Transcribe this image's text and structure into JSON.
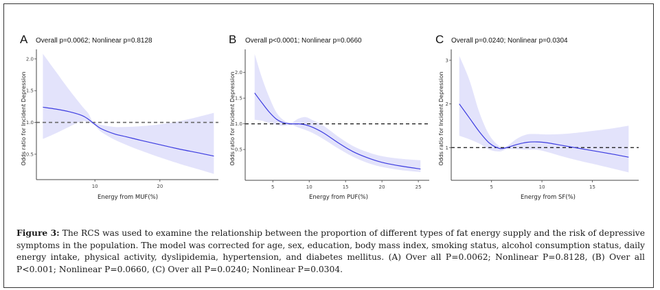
{
  "figure": {
    "caption_label": "Figure 3:",
    "caption_text": " The RCS was used to examine the relationship between the proportion of different types of fat energy supply and the risk of depressive symptoms in the population. The model was corrected for age, sex, education, body mass index, smoking status, alcohol consumption status, daily energy intake, physical activity, dyslipidemia, hypertension, and diabetes mellitus. (A) Over all P=0.0062; Nonlinear P=0.8128, (B) Over all P<0.001; Nonlinear P=0.0660, (C) Over all P=0.0240; Nonlinear P=0.0304."
  },
  "colors": {
    "curve": "#3b3be0",
    "ribbon": "#e3e3fb",
    "reference_line_A": "#666666",
    "reference_line_BC": "#111111",
    "axis": "#444444"
  },
  "chart_data": [
    {
      "type": "line",
      "panel": "A",
      "title": "Overall p=0.0062; Nonlinear p=0.8128",
      "xlabel": "Energy from MUF(%)",
      "ylabel": "Odds ratio for Incident Depression",
      "xlim": [
        1.0,
        29.0
      ],
      "ylim": [
        0.1,
        2.15
      ],
      "xticks": [
        10,
        20
      ],
      "xtick_labels": [
        "10",
        "20"
      ],
      "yticks": [
        0.5,
        1.0,
        1.5,
        2.0
      ],
      "ytick_labels": [
        "0.5",
        "1.0",
        "1.5",
        "2.0"
      ],
      "reference_y": 1.0,
      "grid": false,
      "series": [
        {
          "name": "OR",
          "x": [
            2,
            4,
            6,
            8,
            9,
            9.6,
            10,
            11,
            13,
            15,
            17,
            20,
            23,
            26,
            28.3
          ],
          "y": [
            1.24,
            1.21,
            1.17,
            1.11,
            1.05,
            1.0,
            0.97,
            0.9,
            0.82,
            0.77,
            0.72,
            0.65,
            0.58,
            0.52,
            0.47
          ],
          "lower": [
            0.74,
            0.83,
            0.93,
            1.02,
            1.0,
            0.98,
            0.95,
            0.85,
            0.73,
            0.64,
            0.56,
            0.45,
            0.35,
            0.26,
            0.19
          ],
          "upper": [
            2.08,
            1.8,
            1.52,
            1.26,
            1.14,
            1.02,
            1.0,
            0.96,
            0.93,
            0.93,
            0.94,
            0.97,
            1.02,
            1.09,
            1.15
          ]
        }
      ]
    },
    {
      "type": "line",
      "panel": "B",
      "title": "Overall p<0.0001; Nonlinear p=0.0660",
      "xlabel": "Energy from PUF(%)",
      "ylabel": "Odds ratio for Incident Depression",
      "xlim": [
        1.2,
        26.5
      ],
      "ylim": [
        -0.1,
        2.45
      ],
      "xticks": [
        5,
        10,
        15,
        20,
        25
      ],
      "xtick_labels": [
        "5",
        "10",
        "15",
        "20",
        "25"
      ],
      "yticks": [
        0.5,
        1.0,
        1.5,
        2.0
      ],
      "ytick_labels": [
        "0.5",
        "1.0",
        "1.5",
        "2.0"
      ],
      "reference_y": 1.0,
      "grid": false,
      "series": [
        {
          "name": "OR",
          "x": [
            2.5,
            3.5,
            4.5,
            5.5,
            6.5,
            7.5,
            8.5,
            9.5,
            10.5,
            12,
            14,
            16,
            18,
            20,
            22.5,
            25.3
          ],
          "y": [
            1.6,
            1.41,
            1.23,
            1.09,
            1.02,
            1.0,
            1.0,
            0.98,
            0.93,
            0.82,
            0.63,
            0.46,
            0.34,
            0.25,
            0.18,
            0.12
          ],
          "lower": [
            1.08,
            1.06,
            1.02,
            0.98,
            0.96,
            0.98,
            0.93,
            0.88,
            0.82,
            0.7,
            0.52,
            0.36,
            0.24,
            0.16,
            0.1,
            0.06
          ],
          "upper": [
            2.36,
            1.9,
            1.52,
            1.22,
            1.07,
            1.02,
            1.1,
            1.13,
            1.07,
            0.96,
            0.75,
            0.57,
            0.45,
            0.37,
            0.32,
            0.29
          ]
        }
      ]
    },
    {
      "type": "line",
      "panel": "C",
      "title": "Overall p=0.0240; Nonlinear p=0.0304",
      "xlabel": "Energy from SF(%)",
      "ylabel": "Odds ratio for Incident Depression",
      "xlim": [
        1.0,
        19.6
      ],
      "ylim": [
        0.25,
        3.25
      ],
      "xticks": [
        5,
        10,
        15
      ],
      "xtick_labels": [
        "5",
        "10",
        "15"
      ],
      "yticks": [
        1,
        2,
        3
      ],
      "ytick_labels": [
        "1",
        "2",
        "3"
      ],
      "reference_y": 1.0,
      "grid": false,
      "series": [
        {
          "name": "OR",
          "x": [
            1.8,
            2.8,
            3.8,
            4.8,
            5.8,
            6.5,
            7.5,
            8.5,
            9.5,
            10.5,
            12,
            13.5,
            15,
            17,
            18.6
          ],
          "y": [
            2.0,
            1.68,
            1.36,
            1.1,
            0.98,
            1.0,
            1.07,
            1.12,
            1.13,
            1.11,
            1.05,
            0.99,
            0.93,
            0.85,
            0.78
          ],
          "lower": [
            1.27,
            1.19,
            1.09,
            0.95,
            0.91,
            0.96,
            0.96,
            0.95,
            0.95,
            0.9,
            0.8,
            0.71,
            0.63,
            0.52,
            0.43
          ],
          "upper": [
            3.1,
            2.55,
            1.8,
            1.28,
            1.03,
            1.03,
            1.2,
            1.3,
            1.31,
            1.3,
            1.31,
            1.34,
            1.38,
            1.44,
            1.5
          ]
        }
      ]
    }
  ]
}
